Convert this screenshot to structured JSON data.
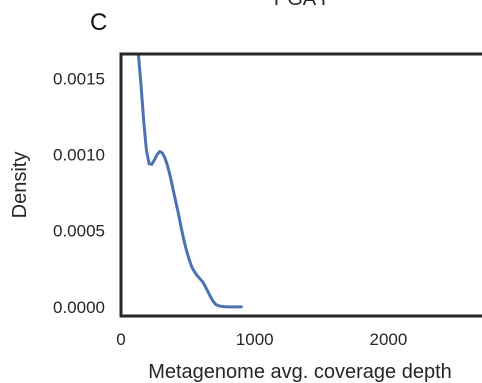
{
  "panel_label": "C",
  "chart_data": {
    "type": "line",
    "title": "PGA I",
    "xlabel": "Metagenome avg. coverage depth",
    "ylabel": "Density",
    "xlim": [
      0,
      2700
    ],
    "ylim": [
      -6e-05,
      0.00166
    ],
    "xticks": [
      0,
      1000,
      2000
    ],
    "xtick_labels": [
      "0",
      "1000",
      "2000"
    ],
    "yticks": [
      0.0,
      0.0005,
      0.001,
      0.0015
    ],
    "ytick_labels": [
      "0.0000",
      "0.0005",
      "0.0010",
      "0.0015"
    ],
    "grid": false,
    "series": [
      {
        "color": "#4c72b0",
        "x": [
          130,
          150,
          170,
          190,
          210,
          230,
          250,
          270,
          290,
          310,
          330,
          350,
          370,
          390,
          410,
          430,
          450,
          470,
          490,
          510,
          530,
          550,
          570,
          590,
          610,
          630,
          650,
          670,
          690,
          710,
          740,
          780,
          840,
          900
        ],
        "y": [
          0.00166,
          0.00145,
          0.00122,
          0.00103,
          0.00094,
          0.000935,
          0.000965,
          0.001,
          0.00102,
          0.00101,
          0.000975,
          0.00092,
          0.00085,
          0.00077,
          0.00069,
          0.00061,
          0.00052,
          0.00044,
          0.00037,
          0.00031,
          0.00026,
          0.00023,
          0.000205,
          0.000185,
          0.000165,
          0.000135,
          0.0001,
          6.5e-05,
          3.5e-05,
          1.5e-05,
          5e-06,
          1e-06,
          0.0,
          0.0
        ]
      }
    ]
  }
}
